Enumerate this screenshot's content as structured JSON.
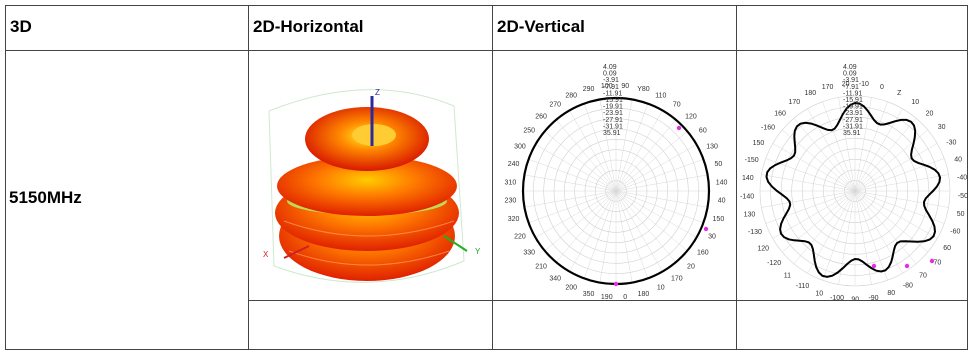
{
  "table": {
    "headers": [
      "3D",
      "2D-Horizontal",
      "2D-Vertical",
      ""
    ],
    "rows": [
      {
        "label": "5150MHz"
      }
    ]
  },
  "plot3d": {
    "axis_z": "Z",
    "axis_x": "X",
    "axis_y": "Y"
  },
  "vertical_plot": {
    "angle_labels": [
      "100",
      "90",
      "Y80",
      "110",
      "70",
      "120",
      "60",
      "130",
      "50",
      "140",
      "40",
      "150",
      "30",
      "160",
      "20",
      "170",
      "10",
      "180",
      "0",
      "190",
      "350",
      "200",
      "340",
      "210",
      "330",
      "220",
      "320",
      "230",
      "310",
      "240",
      "300",
      "250",
      "260",
      "270",
      "280",
      "290"
    ],
    "db_labels": [
      "4.09",
      "0.09",
      "-3.91",
      "-7.91",
      "-11.91",
      "-15.91",
      "-19.91",
      "-23.91",
      "-27.91",
      "-31.91",
      "35.91"
    ]
  },
  "fourth_plot": {
    "angle_labels": [
      "20",
      "-10",
      "0",
      "Z",
      "10",
      "20",
      "30",
      "-30",
      "40",
      "-40",
      "-50",
      "50",
      "-60",
      "60",
      "-70",
      "70",
      "-80",
      "80",
      "-90",
      "90",
      "-100",
      "10",
      "-110",
      "11",
      "-120",
      "120",
      "-130",
      "130",
      "-140",
      "140",
      "-150",
      "150",
      "-160",
      "160",
      "170",
      "180",
      "170"
    ],
    "db_labels": [
      "4.09",
      "0.09",
      "-3.91",
      "-7.91",
      "-11.91",
      "-15.91",
      "-19.91",
      "-23.91",
      "-27.91",
      "-31.91",
      "35.91"
    ]
  }
}
